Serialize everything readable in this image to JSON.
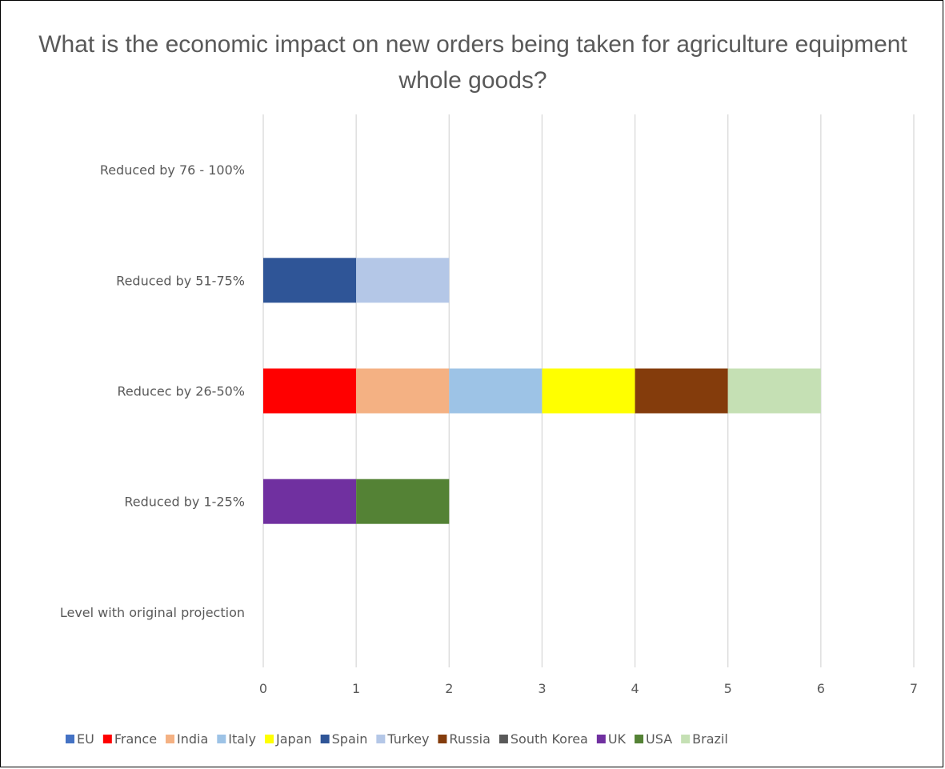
{
  "chart_data": {
    "type": "bar",
    "orientation": "horizontal",
    "stacked": true,
    "title": "What is the economic impact on new orders being taken for agriculture equipment whole goods?",
    "categories": [
      "Reduced by 76 - 100%",
      "Reduced by 51-75%",
      "Reducec by 26-50%",
      "Reduced by 1-25%",
      "Level with original projection"
    ],
    "xlim": [
      0,
      7
    ],
    "xticks": [
      "0",
      "1",
      "2",
      "3",
      "4",
      "5",
      "6",
      "7"
    ],
    "grid": "vertical",
    "legend_position": "bottom",
    "series": [
      {
        "name": "EU",
        "color": "#4472C4",
        "values": [
          0,
          0,
          0,
          0,
          0
        ]
      },
      {
        "name": "France",
        "color": "#FF0000",
        "values": [
          0,
          0,
          1,
          0,
          0
        ]
      },
      {
        "name": "India",
        "color": "#F4B183",
        "values": [
          0,
          0,
          1,
          0,
          0
        ]
      },
      {
        "name": "Italy",
        "color": "#9DC3E6",
        "values": [
          0,
          0,
          1,
          0,
          0
        ]
      },
      {
        "name": "Japan",
        "color": "#FFFF00",
        "values": [
          0,
          0,
          1,
          0,
          0
        ]
      },
      {
        "name": "Spain",
        "color": "#2F5597",
        "values": [
          0,
          1,
          0,
          0,
          0
        ]
      },
      {
        "name": "Turkey",
        "color": "#B4C7E7",
        "values": [
          0,
          1,
          0,
          0,
          0
        ]
      },
      {
        "name": "Russia",
        "color": "#843C0C",
        "values": [
          0,
          0,
          1,
          0,
          0
        ]
      },
      {
        "name": "South Korea",
        "color": "#595959",
        "values": [
          0,
          0,
          0,
          0,
          0
        ]
      },
      {
        "name": "UK",
        "color": "#7030A0",
        "values": [
          0,
          0,
          0,
          1,
          0
        ]
      },
      {
        "name": "USA",
        "color": "#548235",
        "values": [
          0,
          0,
          0,
          1,
          0
        ]
      },
      {
        "name": "Brazil",
        "color": "#C5E0B4",
        "values": [
          0,
          0,
          1,
          0,
          0
        ]
      }
    ]
  }
}
